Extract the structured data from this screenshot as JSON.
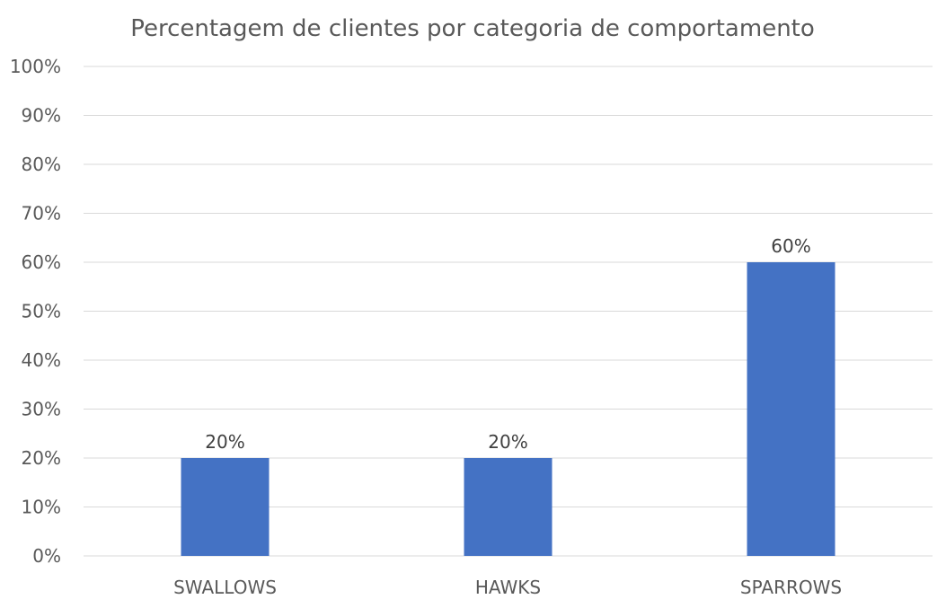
{
  "chart_data": {
    "type": "bar",
    "title": "Percentagem de clientes por categoria de comportamento",
    "categories": [
      "SWALLOWS",
      "HAWKS",
      "SPARROWS"
    ],
    "values": [
      20,
      20,
      60
    ],
    "data_labels": [
      "20%",
      "20%",
      "60%"
    ],
    "ylim": [
      0,
      100
    ],
    "yticks": [
      "0%",
      "10%",
      "20%",
      "30%",
      "40%",
      "50%",
      "60%",
      "70%",
      "80%",
      "90%",
      "100%"
    ],
    "grid": true,
    "legend": "none",
    "bar_color": "#4472C4"
  }
}
